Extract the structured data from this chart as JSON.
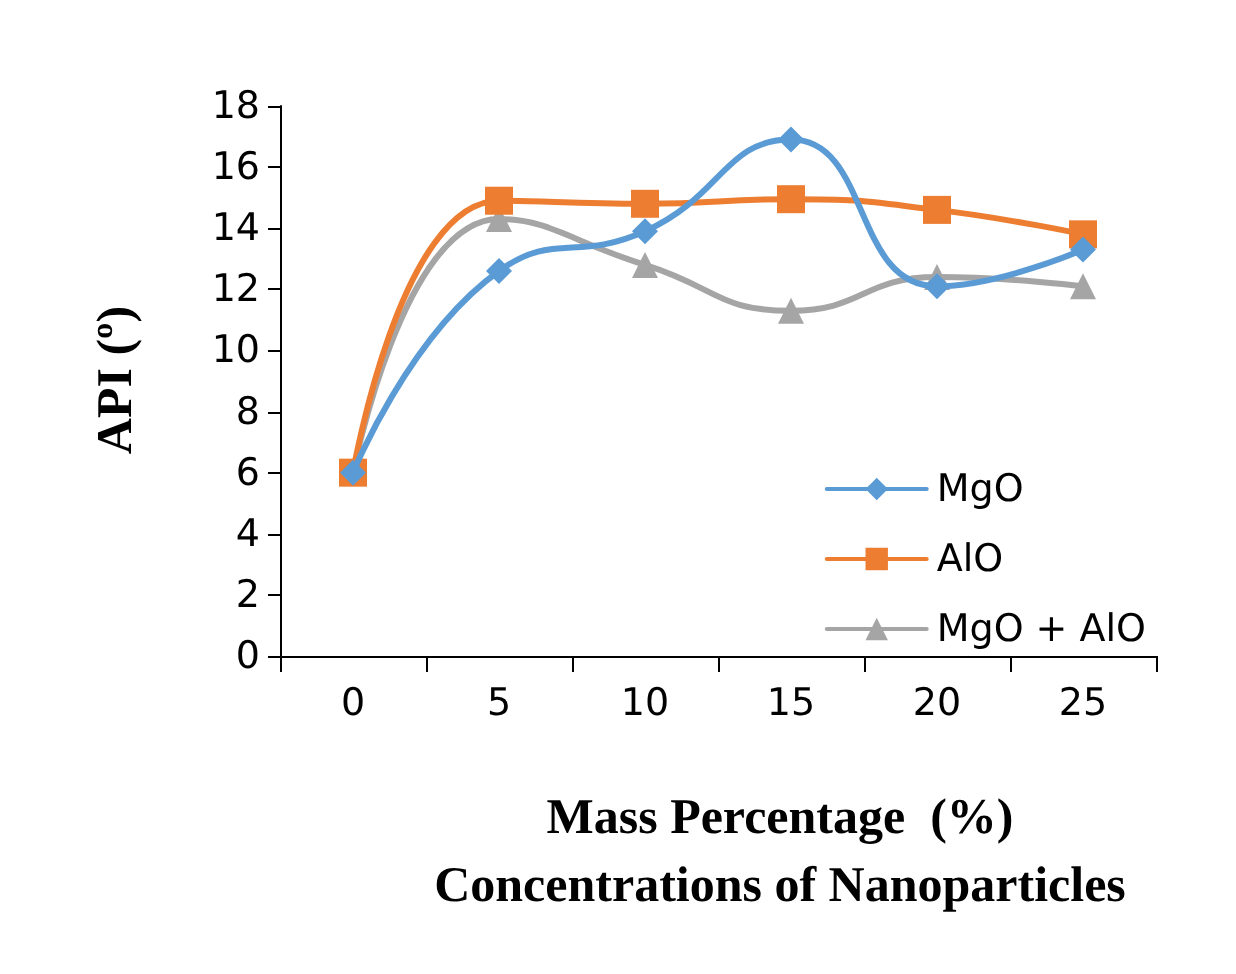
{
  "chart_data": {
    "type": "line",
    "xlabel": "Mass Percentage  (%)\nConcentrations of Nanoparticles",
    "ylabel": "API (º)",
    "categories": [
      "0",
      "5",
      "10",
      "15",
      "20",
      "25"
    ],
    "series": [
      {
        "name": "MgO",
        "color": "#5b9bd5",
        "marker": "diamond",
        "values": [
          6,
          12.6,
          13.9,
          16.9,
          12.1,
          13.3
        ]
      },
      {
        "name": "AlO",
        "color": "#ed7d31",
        "marker": "square",
        "values": [
          6,
          14.9,
          14.8,
          14.95,
          14.6,
          13.8
        ]
      },
      {
        "name": "MgO + AlO",
        "color": "#a5a5a5",
        "marker": "triangle",
        "values": [
          6,
          14.3,
          12.8,
          11.3,
          12.4,
          12.1
        ]
      }
    ],
    "ylim": [
      0,
      18
    ],
    "yticks": [
      0,
      2,
      4,
      6,
      8,
      10,
      12,
      14,
      16,
      18
    ],
    "grid": false,
    "legend": "right"
  }
}
